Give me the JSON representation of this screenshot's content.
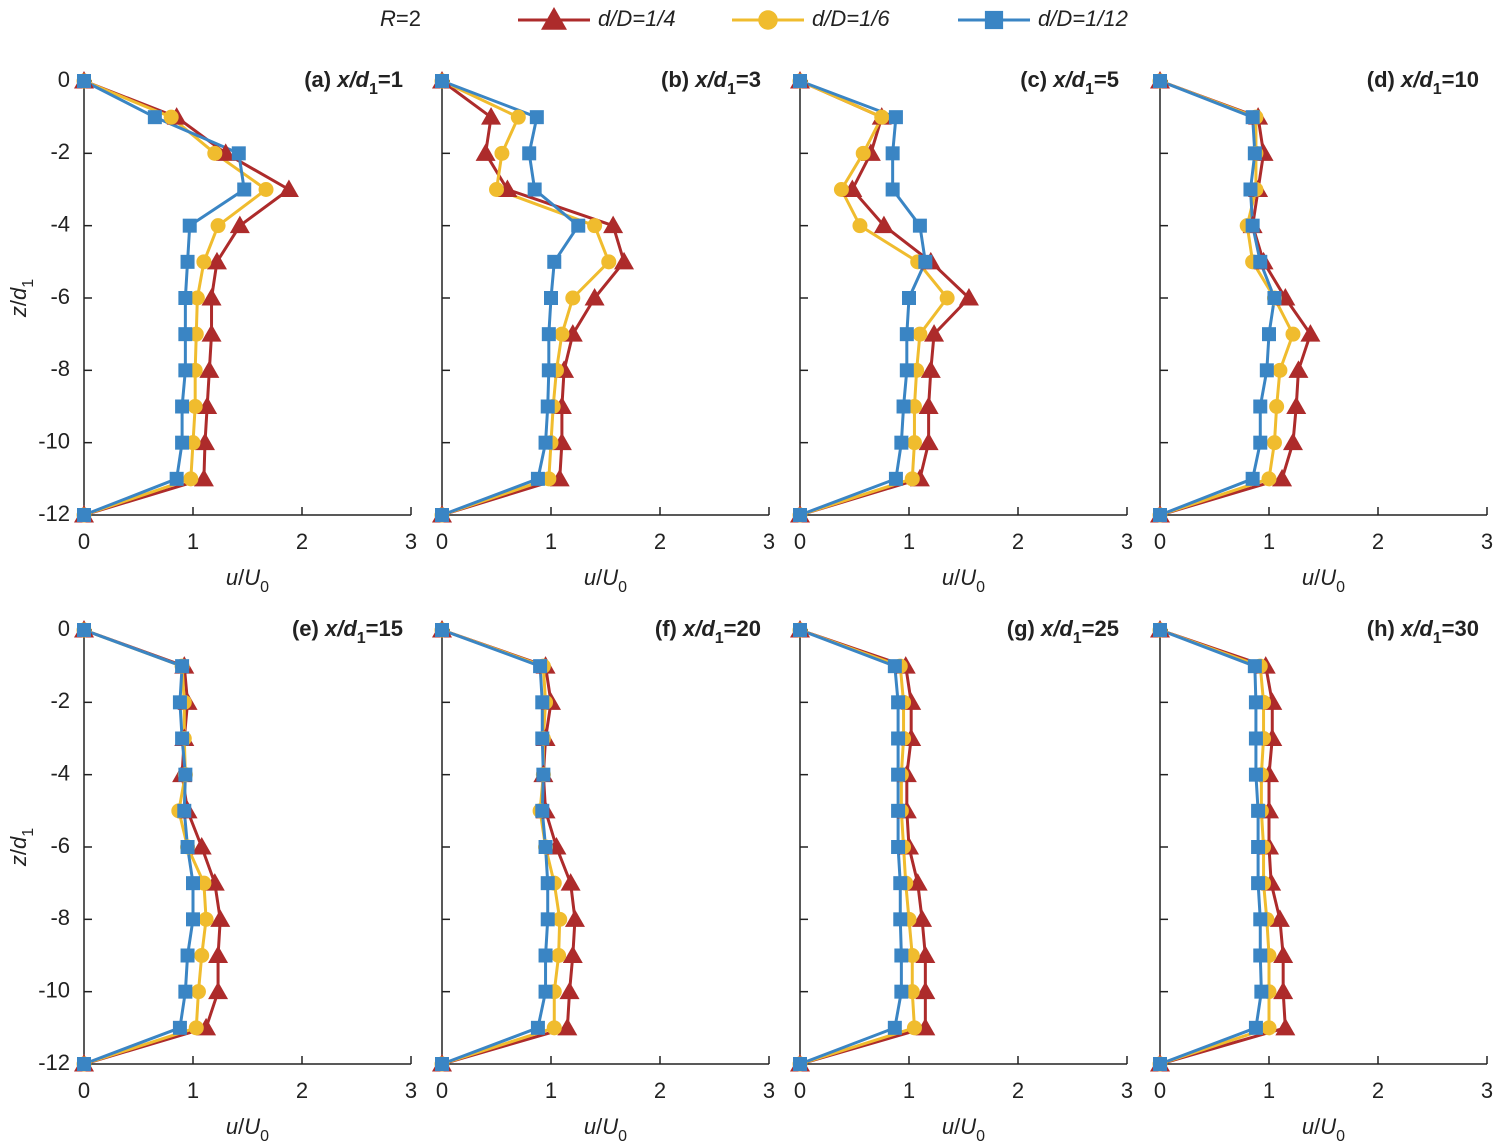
{
  "legend": {
    "title_parts": [
      "R",
      "=2"
    ],
    "entries": [
      {
        "name": "d/D=1/4",
        "color": "#ad2b2b",
        "marker": "triangle"
      },
      {
        "name": "d/D=1/6",
        "color": "#f0bc2e",
        "marker": "circle"
      },
      {
        "name": "d/D=1/12",
        "color": "#3a85c4",
        "marker": "square"
      }
    ]
  },
  "chart_data": [
    {
      "type": "line",
      "title_parts": [
        "(a) ",
        "x/d",
        "1",
        "=1"
      ],
      "xlabel_parts": [
        "u",
        "/",
        "U",
        "0"
      ],
      "ylabel_parts": [
        "z",
        "/",
        "d",
        "1"
      ],
      "show_ytick_labels": true,
      "xlim": [
        0,
        3
      ],
      "xticks": [
        0,
        1,
        2,
        3
      ],
      "ylim": [
        -12,
        0
      ],
      "yticks": [
        0,
        -2,
        -4,
        -6,
        -8,
        -10,
        -12
      ],
      "y": [
        0,
        -1,
        -2,
        -3,
        -4,
        -5,
        -6,
        -7,
        -8,
        -9,
        -10,
        -11,
        -12
      ],
      "series": [
        {
          "x": [
            0,
            0.85,
            1.3,
            1.88,
            1.43,
            1.22,
            1.17,
            1.17,
            1.15,
            1.13,
            1.11,
            1.1,
            0
          ]
        },
        {
          "x": [
            0,
            0.8,
            1.2,
            1.67,
            1.23,
            1.1,
            1.04,
            1.03,
            1.02,
            1.02,
            1.0,
            0.98,
            0
          ]
        },
        {
          "x": [
            0,
            0.65,
            1.42,
            1.47,
            0.97,
            0.95,
            0.93,
            0.93,
            0.93,
            0.9,
            0.9,
            0.85,
            0
          ]
        }
      ]
    },
    {
      "type": "line",
      "title_parts": [
        "(b) ",
        "x/d",
        "1",
        "=3"
      ],
      "xlabel_parts": [
        "u",
        "/",
        "U",
        "0"
      ],
      "show_ytick_labels": false,
      "xlim": [
        0,
        3
      ],
      "xticks": [
        0,
        1,
        2,
        3
      ],
      "ylim": [
        -12,
        0
      ],
      "yticks": [
        0,
        -2,
        -4,
        -6,
        -8,
        -10,
        -12
      ],
      "y": [
        0,
        -1,
        -2,
        -3,
        -4,
        -5,
        -6,
        -7,
        -8,
        -9,
        -10,
        -11,
        -12
      ],
      "series": [
        {
          "x": [
            0,
            0.45,
            0.4,
            0.6,
            1.57,
            1.67,
            1.4,
            1.2,
            1.12,
            1.1,
            1.1,
            1.08,
            0
          ]
        },
        {
          "x": [
            0,
            0.7,
            0.55,
            0.5,
            1.4,
            1.53,
            1.2,
            1.1,
            1.05,
            1.02,
            1.0,
            0.98,
            0
          ]
        },
        {
          "x": [
            0,
            0.87,
            0.8,
            0.85,
            1.25,
            1.03,
            1.0,
            0.98,
            0.98,
            0.97,
            0.95,
            0.88,
            0
          ]
        }
      ]
    },
    {
      "type": "line",
      "title_parts": [
        "(c) ",
        "x/d",
        "1",
        "=5"
      ],
      "xlabel_parts": [
        "u",
        "/",
        "U",
        "0"
      ],
      "show_ytick_labels": false,
      "xlim": [
        0,
        3
      ],
      "xticks": [
        0,
        1,
        2,
        3
      ],
      "ylim": [
        -12,
        0
      ],
      "yticks": [
        0,
        -2,
        -4,
        -6,
        -8,
        -10,
        -12
      ],
      "y": [
        0,
        -1,
        -2,
        -3,
        -4,
        -5,
        -6,
        -7,
        -8,
        -9,
        -10,
        -11,
        -12
      ],
      "series": [
        {
          "x": [
            0,
            0.75,
            0.65,
            0.48,
            0.77,
            1.2,
            1.55,
            1.23,
            1.2,
            1.18,
            1.18,
            1.1,
            0
          ]
        },
        {
          "x": [
            0,
            0.75,
            0.58,
            0.38,
            0.55,
            1.08,
            1.35,
            1.1,
            1.07,
            1.05,
            1.05,
            1.03,
            0
          ]
        },
        {
          "x": [
            0,
            0.88,
            0.85,
            0.85,
            1.1,
            1.15,
            1.0,
            0.98,
            0.98,
            0.95,
            0.93,
            0.88,
            0
          ]
        }
      ]
    },
    {
      "type": "line",
      "title_parts": [
        "(d) ",
        "x/d",
        "1",
        "=10"
      ],
      "xlabel_parts": [
        "u",
        "/",
        "U",
        "0"
      ],
      "show_ytick_labels": false,
      "xlim": [
        0,
        3
      ],
      "xticks": [
        0,
        1,
        2,
        3
      ],
      "ylim": [
        -12,
        0
      ],
      "yticks": [
        0,
        -2,
        -4,
        -6,
        -8,
        -10,
        -12
      ],
      "y": [
        0,
        -1,
        -2,
        -3,
        -4,
        -5,
        -6,
        -7,
        -8,
        -9,
        -10,
        -11,
        -12
      ],
      "series": [
        {
          "x": [
            0,
            0.9,
            0.95,
            0.9,
            0.85,
            0.95,
            1.15,
            1.38,
            1.27,
            1.25,
            1.22,
            1.12,
            0
          ]
        },
        {
          "x": [
            0,
            0.88,
            0.88,
            0.88,
            0.8,
            0.85,
            1.05,
            1.22,
            1.1,
            1.07,
            1.05,
            1.0,
            0
          ]
        },
        {
          "x": [
            0,
            0.85,
            0.87,
            0.83,
            0.85,
            0.92,
            1.05,
            1.0,
            0.98,
            0.92,
            0.92,
            0.85,
            0
          ]
        }
      ]
    },
    {
      "type": "line",
      "title_parts": [
        "(e) ",
        "x/d",
        "1",
        "=15"
      ],
      "xlabel_parts": [
        "u",
        "/",
        "U",
        "0"
      ],
      "ylabel_parts": [
        "z",
        "/",
        "d",
        "1"
      ],
      "show_ytick_labels": true,
      "xlim": [
        0,
        3
      ],
      "xticks": [
        0,
        1,
        2,
        3
      ],
      "ylim": [
        -12,
        0
      ],
      "yticks": [
        0,
        -2,
        -4,
        -6,
        -8,
        -10,
        -12
      ],
      "y": [
        0,
        -1,
        -2,
        -3,
        -4,
        -5,
        -6,
        -7,
        -8,
        -9,
        -10,
        -11,
        -12
      ],
      "series": [
        {
          "x": [
            0,
            0.92,
            0.95,
            0.92,
            0.9,
            0.95,
            1.08,
            1.2,
            1.25,
            1.23,
            1.23,
            1.12,
            0
          ]
        },
        {
          "x": [
            0,
            0.9,
            0.92,
            0.92,
            0.93,
            0.87,
            0.95,
            1.1,
            1.12,
            1.08,
            1.05,
            1.03,
            0
          ]
        },
        {
          "x": [
            0,
            0.9,
            0.88,
            0.9,
            0.93,
            0.92,
            0.95,
            1.0,
            1.0,
            0.95,
            0.93,
            0.88,
            0
          ]
        }
      ]
    },
    {
      "type": "line",
      "title_parts": [
        "(f) ",
        "x/d",
        "1",
        "=20"
      ],
      "xlabel_parts": [
        "u",
        "/",
        "U",
        "0"
      ],
      "show_ytick_labels": false,
      "xlim": [
        0,
        3
      ],
      "xticks": [
        0,
        1,
        2,
        3
      ],
      "ylim": [
        -12,
        0
      ],
      "yticks": [
        0,
        -2,
        -4,
        -6,
        -8,
        -10,
        -12
      ],
      "y": [
        0,
        -1,
        -2,
        -3,
        -4,
        -5,
        -6,
        -7,
        -8,
        -9,
        -10,
        -11,
        -12
      ],
      "series": [
        {
          "x": [
            0,
            0.95,
            1.0,
            0.95,
            0.93,
            0.95,
            1.05,
            1.18,
            1.22,
            1.2,
            1.17,
            1.15,
            0
          ]
        },
        {
          "x": [
            0,
            0.93,
            0.95,
            0.93,
            0.93,
            0.9,
            0.95,
            1.03,
            1.08,
            1.07,
            1.03,
            1.03,
            0
          ]
        },
        {
          "x": [
            0,
            0.9,
            0.92,
            0.92,
            0.93,
            0.92,
            0.95,
            0.97,
            0.97,
            0.95,
            0.95,
            0.88,
            0
          ]
        }
      ]
    },
    {
      "type": "line",
      "title_parts": [
        "(g) ",
        "x/d",
        "1",
        "=25"
      ],
      "xlabel_parts": [
        "u",
        "/",
        "U",
        "0"
      ],
      "show_ytick_labels": false,
      "xlim": [
        0,
        3
      ],
      "xticks": [
        0,
        1,
        2,
        3
      ],
      "ylim": [
        -12,
        0
      ],
      "yticks": [
        0,
        -2,
        -4,
        -6,
        -8,
        -10,
        -12
      ],
      "y": [
        0,
        -1,
        -2,
        -3,
        -4,
        -5,
        -6,
        -7,
        -8,
        -9,
        -10,
        -11,
        -12
      ],
      "series": [
        {
          "x": [
            0,
            0.97,
            1.02,
            1.02,
            0.98,
            0.98,
            1.0,
            1.08,
            1.12,
            1.15,
            1.15,
            1.15,
            0
          ]
        },
        {
          "x": [
            0,
            0.92,
            0.95,
            0.95,
            0.93,
            0.93,
            0.95,
            0.97,
            1.0,
            1.03,
            1.03,
            1.05,
            0
          ]
        },
        {
          "x": [
            0,
            0.87,
            0.9,
            0.9,
            0.9,
            0.9,
            0.9,
            0.92,
            0.92,
            0.93,
            0.93,
            0.87,
            0
          ]
        }
      ]
    },
    {
      "type": "line",
      "title_parts": [
        "(h) ",
        "x/d",
        "1",
        "=30"
      ],
      "xlabel_parts": [
        "u",
        "/",
        "U",
        "0"
      ],
      "show_ytick_labels": false,
      "xlim": [
        0,
        3
      ],
      "xticks": [
        0,
        1,
        2,
        3
      ],
      "ylim": [
        -12,
        0
      ],
      "yticks": [
        0,
        -2,
        -4,
        -6,
        -8,
        -10,
        -12
      ],
      "y": [
        0,
        -1,
        -2,
        -3,
        -4,
        -5,
        -6,
        -7,
        -8,
        -9,
        -10,
        -11,
        -12
      ],
      "series": [
        {
          "x": [
            0,
            0.97,
            1.03,
            1.03,
            1.0,
            1.0,
            1.0,
            1.02,
            1.1,
            1.13,
            1.13,
            1.15,
            0
          ]
        },
        {
          "x": [
            0,
            0.92,
            0.95,
            0.95,
            0.93,
            0.93,
            0.95,
            0.95,
            0.98,
            1.0,
            1.0,
            1.0,
            0
          ]
        },
        {
          "x": [
            0,
            0.87,
            0.88,
            0.88,
            0.88,
            0.9,
            0.9,
            0.9,
            0.92,
            0.92,
            0.93,
            0.88,
            0
          ]
        }
      ]
    }
  ]
}
